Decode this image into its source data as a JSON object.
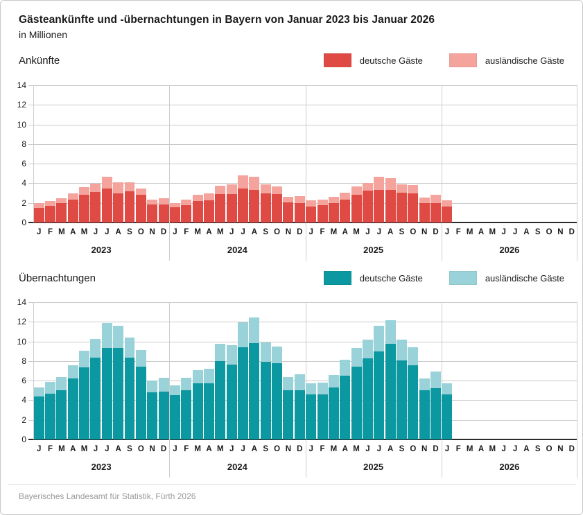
{
  "header": {
    "title": "Gästeankünfte und -übernachtungen in Bayern von Januar 2023 bis Januar 2026",
    "subtitle": "in Millionen"
  },
  "footer": {
    "source": "Bayerisches Landesamt für Statistik, Fürth 2026"
  },
  "colors": {
    "arrivals_domestic": "#e04a44",
    "arrivals_foreign": "#f4a49d",
    "overnight_domestic": "#0c98a0",
    "overnight_foreign": "#99d2d8",
    "gridline": "#c9c9c9",
    "axis": "#2b2b2b",
    "footer_text": "#9a9a9a"
  },
  "chart_data": [
    {
      "type": "bar",
      "stacked": true,
      "title": "Ankünfte",
      "unit": "Millionen",
      "ylim": [
        0,
        14
      ],
      "yticks": [
        0,
        2,
        4,
        6,
        8,
        10,
        12,
        14
      ],
      "grid": true,
      "legend_position": "top-right",
      "month_letters": [
        "J",
        "F",
        "M",
        "A",
        "M",
        "J",
        "J",
        "A",
        "S",
        "O",
        "N",
        "D"
      ],
      "years": [
        "2023",
        "2024",
        "2025",
        "2026"
      ],
      "series": [
        {
          "name": "deutsche Gäste",
          "color": "#e04a44",
          "values": [
            1.5,
            1.7,
            1.95,
            2.3,
            2.85,
            3.1,
            3.45,
            3.0,
            3.15,
            2.8,
            1.85,
            1.85,
            1.55,
            1.8,
            2.2,
            2.25,
            2.9,
            2.9,
            3.45,
            3.35,
            2.95,
            2.9,
            2.05,
            1.95,
            1.65,
            1.8,
            2.0,
            2.35,
            2.85,
            3.25,
            3.35,
            3.3,
            3.05,
            2.95,
            2.0,
            2.0,
            1.65
          ]
        },
        {
          "name": "ausländische Gäste",
          "color": "#f4a49d",
          "values": [
            0.45,
            0.5,
            0.55,
            0.65,
            0.75,
            0.85,
            1.2,
            1.1,
            0.95,
            0.7,
            0.45,
            0.65,
            0.45,
            0.55,
            0.6,
            0.7,
            0.85,
            1.0,
            1.35,
            1.3,
            0.95,
            0.8,
            0.55,
            0.75,
            0.6,
            0.5,
            0.6,
            0.7,
            0.85,
            0.75,
            1.3,
            1.25,
            0.85,
            0.9,
            0.55,
            0.85,
            0.6
          ]
        }
      ]
    },
    {
      "type": "bar",
      "stacked": true,
      "title": "Übernachtungen",
      "unit": "Millionen",
      "ylim": [
        0,
        14
      ],
      "yticks": [
        0,
        2,
        4,
        6,
        8,
        10,
        12,
        14
      ],
      "grid": true,
      "legend_position": "top-right",
      "month_letters": [
        "J",
        "F",
        "M",
        "A",
        "M",
        "J",
        "J",
        "A",
        "S",
        "O",
        "N",
        "D"
      ],
      "years": [
        "2023",
        "2024",
        "2025",
        "2026"
      ],
      "series": [
        {
          "name": "deutsche Gäste",
          "color": "#0c98a0",
          "values": [
            4.35,
            4.7,
            5.05,
            6.2,
            7.35,
            8.35,
            9.35,
            9.35,
            8.35,
            7.45,
            4.8,
            4.85,
            4.5,
            5.0,
            5.75,
            5.7,
            8.0,
            7.65,
            9.4,
            9.8,
            7.9,
            7.75,
            5.05,
            5.05,
            4.6,
            4.6,
            5.3,
            6.5,
            7.4,
            8.25,
            9.0,
            9.75,
            8.05,
            7.6,
            5.0,
            5.2,
            4.6
          ]
        },
        {
          "name": "ausländische Gäste",
          "color": "#99d2d8",
          "values": [
            0.95,
            1.2,
            1.3,
            1.4,
            1.7,
            1.9,
            2.5,
            2.25,
            2.05,
            1.7,
            1.2,
            1.45,
            1.05,
            1.3,
            1.3,
            1.5,
            1.75,
            2.0,
            2.55,
            2.65,
            2.0,
            1.7,
            1.3,
            1.6,
            1.15,
            1.2,
            1.25,
            1.6,
            1.9,
            1.9,
            2.6,
            2.4,
            2.15,
            1.8,
            1.2,
            1.7,
            1.15
          ]
        }
      ]
    }
  ]
}
